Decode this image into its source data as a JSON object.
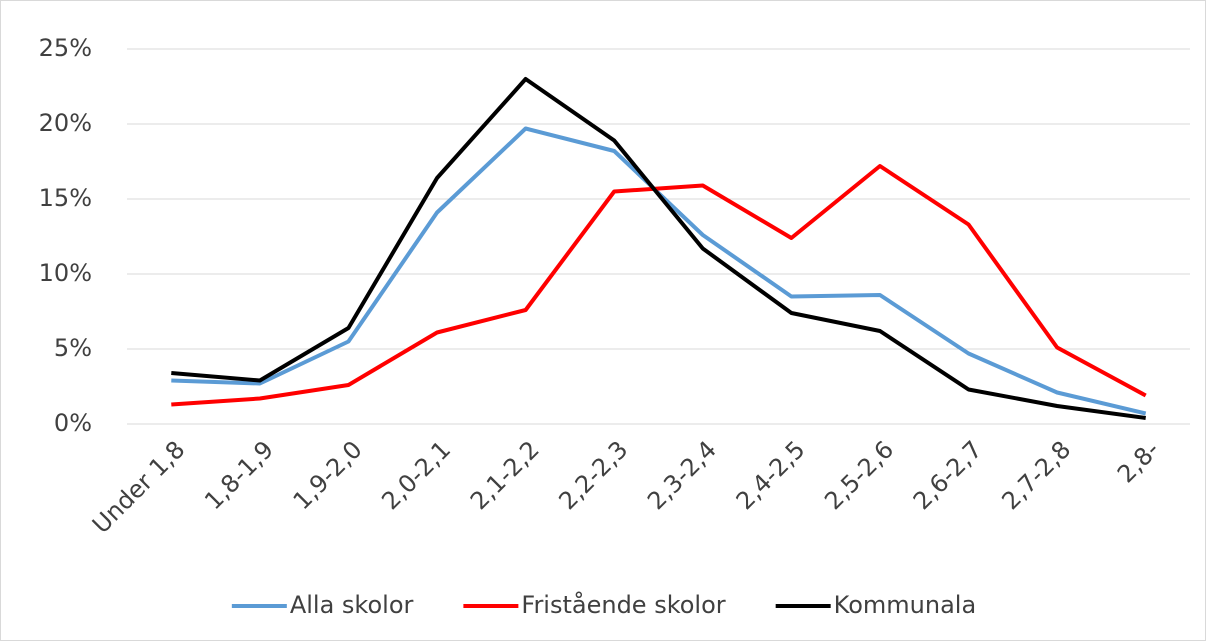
{
  "chart_data": {
    "type": "line",
    "categories": [
      "Under 1,8",
      "1,8-1,9",
      "1,9-2,0",
      "2,0-2,1",
      "2,1-2,2",
      "2,2-2,3",
      "2,3-2,4",
      "2,4-2,5",
      "2,5-2,6",
      "2,6-2,7",
      "2,7-2,8",
      "2,8-"
    ],
    "series": [
      {
        "name": "Alla skolor",
        "color": "#5b9bd5",
        "values": [
          2.9,
          2.7,
          5.5,
          14.1,
          19.7,
          18.2,
          12.6,
          8.5,
          8.6,
          4.7,
          2.1,
          0.7
        ]
      },
      {
        "name": "Fristående skolor",
        "color": "#ff0000",
        "values": [
          1.3,
          1.7,
          2.6,
          6.1,
          7.6,
          15.5,
          15.9,
          12.4,
          17.2,
          13.3,
          5.1,
          1.9
        ]
      },
      {
        "name": "Kommunala",
        "color": "#000000",
        "values": [
          3.4,
          2.9,
          6.4,
          16.4,
          23.0,
          18.9,
          11.7,
          7.4,
          6.2,
          2.3,
          1.2,
          0.4
        ]
      }
    ],
    "ylim": [
      0,
      25
    ],
    "yticks": [
      {
        "value": 0,
        "label": "0%"
      },
      {
        "value": 5,
        "label": "5%"
      },
      {
        "value": 10,
        "label": "10%"
      },
      {
        "value": 15,
        "label": "15%"
      },
      {
        "value": 20,
        "label": "20%"
      },
      {
        "value": 25,
        "label": "25%"
      }
    ],
    "grid": true,
    "legend": "bottom"
  }
}
